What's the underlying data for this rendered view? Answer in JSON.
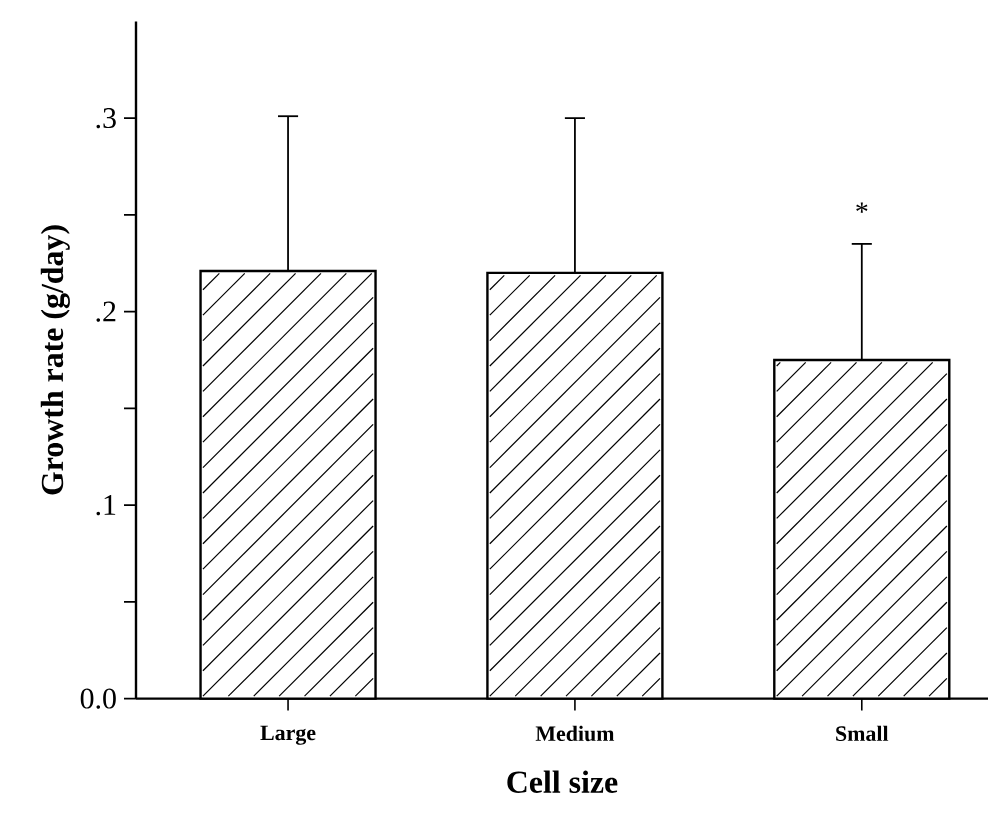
{
  "chart_data": {
    "type": "bar",
    "xlabel": "Cell size",
    "ylabel": "Growth rate (g/day)",
    "categories": [
      "Large",
      "Medium",
      "Small"
    ],
    "values": [
      0.221,
      0.22,
      0.175
    ],
    "errors": [
      [
        0.221,
        0.301
      ],
      [
        0.22,
        0.3
      ],
      [
        0.175,
        0.235
      ]
    ],
    "color": "#000000",
    "ylim": [
      0,
      0.35
    ],
    "yticks": [
      {
        "value": 0,
        "label": "0.0"
      },
      {
        "value": 0.05,
        "label": null
      },
      {
        "value": 0.1,
        "label": ".1"
      },
      {
        "value": 0.15,
        "label": null
      },
      {
        "value": 0.2,
        "label": ".2"
      },
      {
        "value": 0.25,
        "label": null
      },
      {
        "value": 0.3,
        "label": ".3"
      }
    ],
    "annotations": [
      "*"
    ],
    "grid": false
  }
}
